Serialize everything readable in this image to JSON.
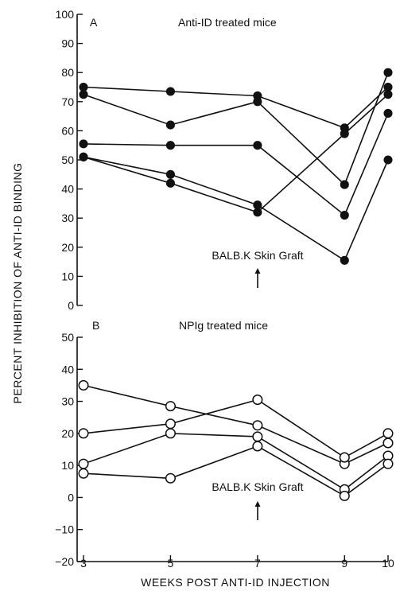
{
  "ylabel": "PERCENT INHIBITION OF ANTI-ID BINDING",
  "xlabel": "WEEKS POST ANTI-ID INJECTION",
  "colors": {
    "ink": "#111111",
    "marker_open_fill": "#ffffff"
  },
  "chart_data": [
    {
      "type": "line",
      "panel": "A",
      "title": "Anti-ID treated mice",
      "x": [
        3,
        5,
        7,
        9,
        10
      ],
      "xlim": [
        3,
        10
      ],
      "xticks": [
        "3",
        "5",
        "7",
        "9",
        "10"
      ],
      "ylim": [
        0,
        100
      ],
      "yticks": [
        "0",
        "10",
        "20",
        "30",
        "40",
        "50",
        "60",
        "70",
        "80",
        "90",
        "100"
      ],
      "marker": "filled-circle",
      "annotation": {
        "text": "BALB.K Skin Graft",
        "x": 7
      },
      "series": [
        {
          "values": [
            75,
            73.5,
            72,
            61,
            75
          ]
        },
        {
          "values": [
            72.5,
            62,
            70,
            41.5,
            80
          ]
        },
        {
          "values": [
            55.5,
            55,
            55,
            31,
            66
          ]
        },
        {
          "values": [
            51,
            42,
            32,
            59,
            72.5
          ]
        },
        {
          "values": [
            51,
            45,
            34.5,
            15.5,
            50
          ]
        }
      ]
    },
    {
      "type": "line",
      "panel": "B",
      "title": "NPIg treated mice",
      "x": [
        3,
        5,
        7,
        9,
        10
      ],
      "xlim": [
        3,
        10
      ],
      "xticks": [
        "3",
        "5",
        "7",
        "9",
        "10"
      ],
      "ylim": [
        -20,
        50
      ],
      "yticks": [
        "−20",
        "−10",
        "0",
        "10",
        "20",
        "30",
        "40",
        "50"
      ],
      "marker": "open-circle",
      "annotation": {
        "text": "BALB.K Skin Graft",
        "x": 7
      },
      "series": [
        {
          "values": [
            35,
            28.5,
            22.5,
            10.5,
            17
          ]
        },
        {
          "values": [
            20,
            23,
            30.5,
            12.5,
            20
          ]
        },
        {
          "values": [
            10.5,
            20,
            19,
            2.5,
            13
          ]
        },
        {
          "values": [
            7.5,
            6,
            16,
            0.5,
            10.5
          ]
        }
      ]
    }
  ]
}
